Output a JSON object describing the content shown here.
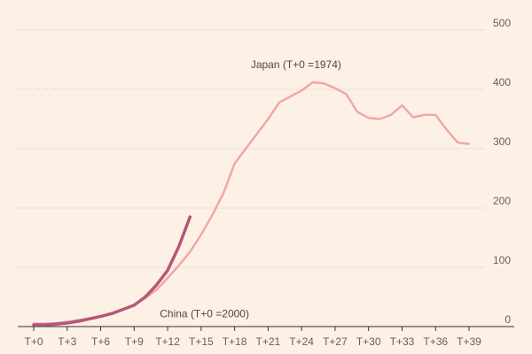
{
  "chart_data": {
    "type": "line",
    "title": "",
    "xlabel": "",
    "ylabel": "",
    "x_ticks": [
      "T+0",
      "T+3",
      "T+6",
      "T+9",
      "T+12",
      "T+15",
      "T+18",
      "T+21",
      "T+24",
      "T+27",
      "T+30",
      "T+33",
      "T+36",
      "T+39"
    ],
    "x_tick_values": [
      0,
      3,
      6,
      9,
      12,
      15,
      18,
      21,
      24,
      27,
      30,
      33,
      36,
      39
    ],
    "xlim": [
      -0.3,
      39.6
    ],
    "y_ticks": [
      0,
      100,
      200,
      300,
      400,
      500
    ],
    "ylim": [
      0,
      500
    ],
    "grid": "horizontal dotted",
    "colors": {
      "japan": "#f2a6aa",
      "china": "#b5577a",
      "grid": "#c9bfb6",
      "axis": "#33302e",
      "background": "#fdf1e6"
    },
    "series": [
      {
        "name": "Japan (T+0 =1974)",
        "x": [
          0,
          1,
          2,
          3,
          4,
          5,
          6,
          7,
          8,
          9,
          10,
          11,
          12,
          13,
          14,
          15,
          16,
          17,
          18,
          19,
          20,
          21,
          22,
          23,
          24,
          25,
          26,
          27,
          28,
          29,
          30,
          31,
          32,
          33,
          34,
          35,
          36,
          37,
          38,
          39
        ],
        "values": [
          5,
          5,
          6,
          8,
          11,
          14,
          18,
          23,
          29,
          37,
          48,
          62,
          82,
          103,
          126,
          155,
          188,
          225,
          275,
          300,
          325,
          350,
          378,
          388,
          398,
          412,
          410,
          402,
          392,
          362,
          352,
          350,
          357,
          373,
          353,
          357,
          357,
          332,
          310,
          308
        ]
      },
      {
        "name": "China (T+0 =2000)",
        "x": [
          0,
          1,
          2,
          3,
          4,
          5,
          6,
          7,
          8,
          9,
          10,
          11,
          12,
          13,
          14
        ],
        "values": [
          3,
          3,
          4,
          6,
          9,
          13,
          17,
          22,
          29,
          36,
          50,
          70,
          95,
          135,
          185
        ]
      }
    ]
  }
}
